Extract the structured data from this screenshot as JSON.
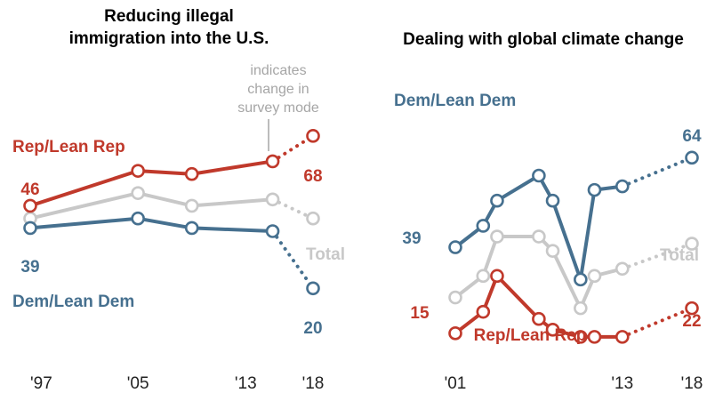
{
  "colors": {
    "rep": "#c0392b",
    "dem": "#46708f",
    "total": "#c8c8c8"
  },
  "chart_data": [
    {
      "type": "line",
      "title_line1": "Reducing illegal",
      "title_line2": "immigration into the U.S.",
      "x_tick_labels": [
        "'97",
        "'05",
        "'13",
        "'18"
      ],
      "x_ticks": [
        1997,
        2005,
        2013,
        2018
      ],
      "xlim": [
        1997,
        2018
      ],
      "ylim": [
        10,
        80
      ],
      "mode_change_note": [
        "indicates",
        "change in",
        "survey mode"
      ],
      "series": [
        {
          "key": "rep",
          "name": "Rep/Lean Rep",
          "x": [
            1997,
            2005,
            2009,
            2015,
            2018
          ],
          "y": [
            46,
            57,
            56,
            60,
            68
          ],
          "dotted_from_index": 3,
          "start_label": "46",
          "end_label": "68"
        },
        {
          "key": "total",
          "name": "Total",
          "x": [
            1997,
            2005,
            2009,
            2015,
            2018
          ],
          "y": [
            42,
            50,
            46,
            48,
            42
          ],
          "dotted_from_index": 3
        },
        {
          "key": "dem",
          "name": "Dem/Lean Dem",
          "x": [
            1997,
            2005,
            2009,
            2015,
            2018
          ],
          "y": [
            39,
            42,
            39,
            38,
            20
          ],
          "dotted_from_index": 3,
          "start_label": "39",
          "end_label": "20"
        }
      ]
    },
    {
      "type": "line",
      "title": "Dealing with global climate change",
      "x_tick_labels": [
        "'01",
        "'13",
        "'18"
      ],
      "x_ticks": [
        2001,
        2013,
        2018
      ],
      "xlim": [
        2001,
        2018
      ],
      "ylim": [
        10,
        75
      ],
      "series": [
        {
          "key": "dem",
          "name": "Dem/Lean Dem",
          "x": [
            2001,
            2003,
            2004,
            2007,
            2008,
            2010,
            2011,
            2013,
            2018
          ],
          "y": [
            39,
            45,
            52,
            59,
            52,
            30,
            55,
            56,
            64
          ],
          "dotted_from_index": 7,
          "start_label": "39",
          "end_label": "64"
        },
        {
          "key": "total",
          "name": "Total",
          "x": [
            2001,
            2003,
            2004,
            2007,
            2008,
            2010,
            2011,
            2013,
            2018
          ],
          "y": [
            25,
            31,
            42,
            42,
            38,
            22,
            31,
            33,
            40
          ],
          "dotted_from_index": 7
        },
        {
          "key": "rep",
          "name": "Rep/Lean Rep",
          "x": [
            2001,
            2003,
            2004,
            2007,
            2008,
            2010,
            2011,
            2013,
            2018
          ],
          "y": [
            15,
            21,
            31,
            19,
            16,
            14,
            14,
            14,
            22
          ],
          "dotted_from_index": 7,
          "start_label": "15",
          "end_label": "22"
        }
      ]
    }
  ]
}
